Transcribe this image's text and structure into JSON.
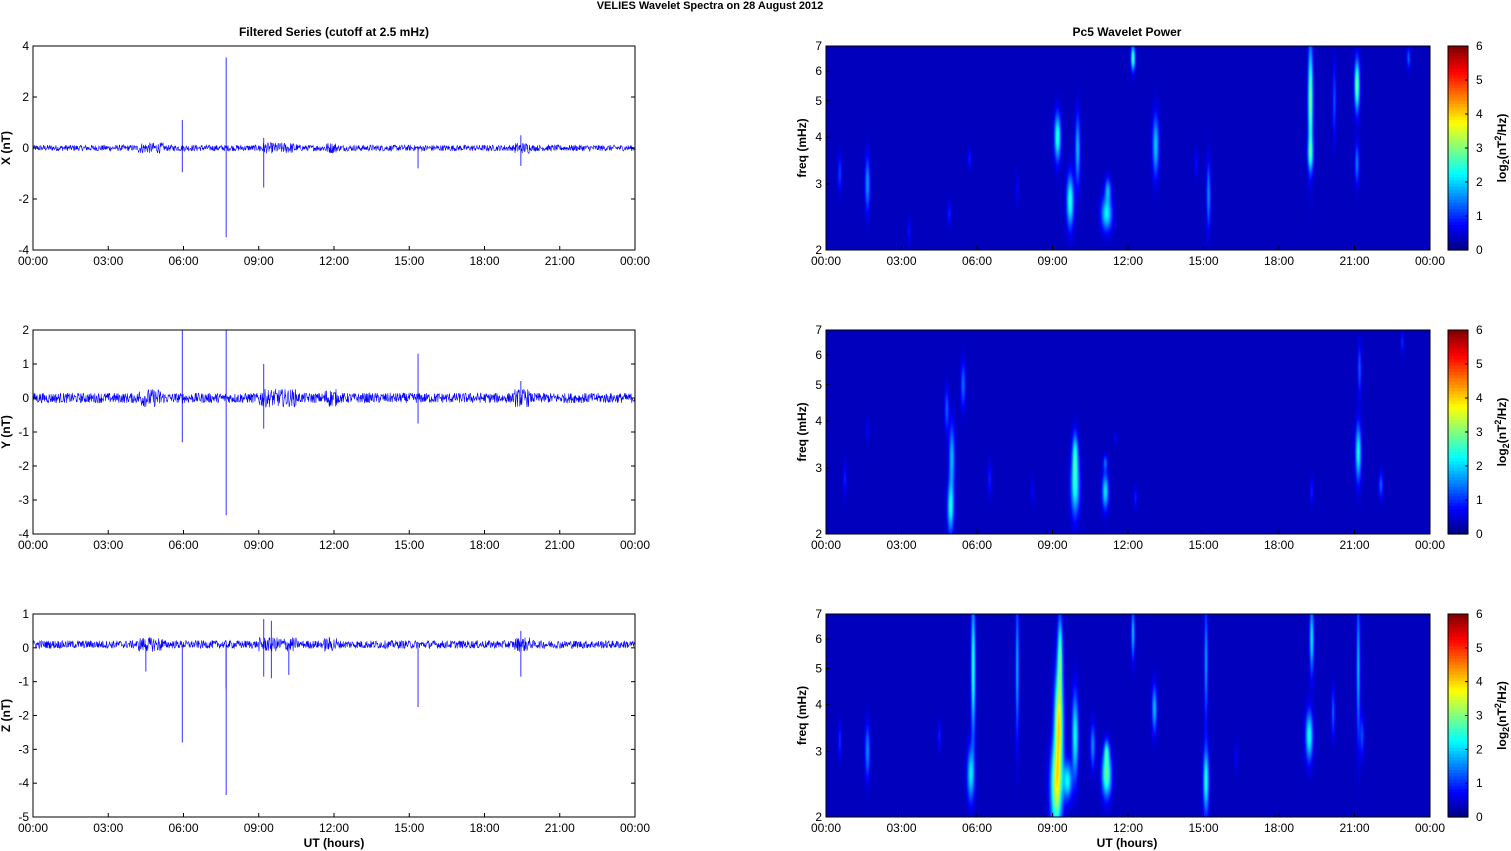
{
  "page_title": "VELIES Wavelet Spectra on 28 August    2012",
  "left_title": "Filtered Series (cutoff at 2.5 mHz)",
  "right_title": "Pc5 Wavelet Power",
  "x_label": "UT (hours)",
  "freq_label": "freq (mHz)",
  "colorbar_label": "log2(nT2/Hz)",
  "colors": {
    "trace": "#0000ff",
    "background": "#00008f"
  },
  "chart_data": [
    {
      "type": "line",
      "title": "Filtered Series (cutoff at 2.5 mHz)",
      "ylabel": "X (nT)",
      "xlabel": "",
      "x_ticks": [
        "00:00",
        "03:00",
        "06:00",
        "09:00",
        "12:00",
        "15:00",
        "18:00",
        "21:00",
        "00:00"
      ],
      "xlim_hours": [
        0,
        24
      ],
      "ylim": [
        -4,
        4
      ],
      "y_ticks": [
        "-4",
        "-2",
        "0",
        "2",
        "4"
      ],
      "baseline": 0.0,
      "noise_amplitude": 0.12,
      "spikes": [
        [
          5.95,
          1.1
        ],
        [
          5.95,
          -0.95
        ],
        [
          7.7,
          3.55
        ],
        [
          7.7,
          -3.5
        ],
        [
          9.2,
          -1.55
        ],
        [
          9.2,
          0.4
        ],
        [
          15.35,
          -0.8
        ],
        [
          19.45,
          -0.7
        ],
        [
          19.45,
          0.5
        ]
      ]
    },
    {
      "type": "line",
      "title": "",
      "ylabel": "Y (nT)",
      "xlabel": "",
      "x_ticks": [
        "00:00",
        "03:00",
        "06:00",
        "09:00",
        "12:00",
        "15:00",
        "18:00",
        "21:00",
        "00:00"
      ],
      "xlim_hours": [
        0,
        24
      ],
      "ylim": [
        -4,
        2
      ],
      "y_ticks": [
        "-4",
        "-3",
        "-2",
        "-1",
        "0",
        "1",
        "2"
      ],
      "baseline": 0.0,
      "noise_amplitude": 0.15,
      "spikes": [
        [
          5.95,
          2.0
        ],
        [
          5.95,
          -1.3
        ],
        [
          7.7,
          2.0
        ],
        [
          7.7,
          -3.45
        ],
        [
          9.2,
          1.0
        ],
        [
          9.2,
          -0.9
        ],
        [
          15.35,
          1.3
        ],
        [
          15.35,
          -0.75
        ],
        [
          19.45,
          0.5
        ]
      ]
    },
    {
      "type": "line",
      "title": "",
      "ylabel": "Z (nT)",
      "xlabel": "UT (hours)",
      "x_ticks": [
        "00:00",
        "03:00",
        "06:00",
        "09:00",
        "12:00",
        "15:00",
        "18:00",
        "21:00",
        "00:00"
      ],
      "xlim_hours": [
        0,
        24
      ],
      "ylim": [
        -5,
        1
      ],
      "y_ticks": [
        "-5",
        "-4",
        "-3",
        "-2",
        "-1",
        "0",
        "1"
      ],
      "baseline": 0.1,
      "noise_amplitude": 0.12,
      "spikes": [
        [
          4.5,
          -0.7
        ],
        [
          5.95,
          -2.8
        ],
        [
          7.7,
          -4.35
        ],
        [
          7.7,
          -1.2
        ],
        [
          9.2,
          0.85
        ],
        [
          9.2,
          -0.85
        ],
        [
          9.5,
          0.8
        ],
        [
          9.5,
          -0.9
        ],
        [
          10.2,
          -0.8
        ],
        [
          15.35,
          -1.75
        ],
        [
          19.45,
          -0.85
        ],
        [
          19.45,
          0.5
        ]
      ]
    },
    {
      "type": "heatmap",
      "title": "Pc5 Wavelet Power",
      "ylabel": "freq (mHz)",
      "xlabel": "",
      "x_ticks": [
        "00:00",
        "03:00",
        "06:00",
        "09:00",
        "12:00",
        "15:00",
        "18:00",
        "21:00",
        "00:00"
      ],
      "xlim_hours": [
        0,
        24
      ],
      "ylim_mhz": [
        2,
        7
      ],
      "y_scale": "log",
      "y_ticks": [
        "2",
        "3",
        "4",
        "5",
        "6",
        "7"
      ],
      "colorbar_ticks": [
        "0",
        "1",
        "2",
        "3",
        "4",
        "5",
        "6"
      ],
      "colorbar_range": [
        0,
        6
      ],
      "blobs": [
        [
          0.55,
          3.2,
          0.06,
          0.25,
          0.8
        ],
        [
          1.65,
          3.0,
          0.07,
          0.35,
          1.4
        ],
        [
          3.3,
          2.25,
          0.05,
          0.12,
          0.5
        ],
        [
          4.9,
          2.5,
          0.06,
          0.12,
          0.6
        ],
        [
          5.7,
          3.5,
          0.05,
          0.15,
          0.6
        ],
        [
          7.6,
          2.9,
          0.05,
          0.2,
          0.4
        ],
        [
          9.2,
          4.0,
          0.09,
          0.4,
          2.3
        ],
        [
          9.7,
          2.7,
          0.1,
          0.3,
          2.3
        ],
        [
          10.0,
          3.7,
          0.07,
          0.55,
          1.6
        ],
        [
          11.15,
          2.5,
          0.15,
          0.18,
          2.0
        ],
        [
          11.2,
          2.9,
          0.08,
          0.15,
          1.4
        ],
        [
          12.2,
          6.5,
          0.06,
          0.35,
          2.5
        ],
        [
          13.1,
          3.8,
          0.09,
          0.5,
          1.7
        ],
        [
          15.2,
          2.8,
          0.06,
          0.4,
          1.3
        ],
        [
          14.7,
          3.4,
          0.05,
          0.2,
          0.5
        ],
        [
          19.25,
          5.0,
          0.07,
          1.2,
          2.8
        ],
        [
          19.25,
          3.6,
          0.08,
          0.25,
          1.6
        ],
        [
          20.2,
          5.0,
          0.05,
          0.8,
          0.9
        ],
        [
          21.1,
          5.5,
          0.07,
          0.6,
          2.8
        ],
        [
          21.1,
          3.4,
          0.06,
          0.3,
          1.2
        ],
        [
          23.15,
          6.5,
          0.05,
          0.3,
          1.0
        ]
      ]
    },
    {
      "type": "heatmap",
      "title": "",
      "ylabel": "freq (mHz)",
      "xlabel": "",
      "x_ticks": [
        "00:00",
        "03:00",
        "06:00",
        "09:00",
        "12:00",
        "15:00",
        "18:00",
        "21:00",
        "00:00"
      ],
      "xlim_hours": [
        0,
        24
      ],
      "ylim_mhz": [
        2,
        7
      ],
      "y_scale": "log",
      "y_ticks": [
        "2",
        "3",
        "4",
        "5",
        "6",
        "7"
      ],
      "colorbar_ticks": [
        "0",
        "1",
        "2",
        "3",
        "4",
        "5",
        "6"
      ],
      "colorbar_range": [
        0,
        6
      ],
      "blobs": [
        [
          0.75,
          2.8,
          0.05,
          0.2,
          0.6
        ],
        [
          1.65,
          3.8,
          0.05,
          0.2,
          0.4
        ],
        [
          4.95,
          2.35,
          0.09,
          0.25,
          2.1
        ],
        [
          5.0,
          3.2,
          0.08,
          0.45,
          1.6
        ],
        [
          4.8,
          4.3,
          0.06,
          0.4,
          1.0
        ],
        [
          5.45,
          5.0,
          0.07,
          0.5,
          1.1
        ],
        [
          6.5,
          2.8,
          0.06,
          0.2,
          0.6
        ],
        [
          8.2,
          2.6,
          0.05,
          0.15,
          0.4
        ],
        [
          9.9,
          2.7,
          0.12,
          0.35,
          2.2
        ],
        [
          9.9,
          3.3,
          0.08,
          0.3,
          1.6
        ],
        [
          11.1,
          2.6,
          0.09,
          0.2,
          1.9
        ],
        [
          11.1,
          3.1,
          0.06,
          0.1,
          1.0
        ],
        [
          12.3,
          2.5,
          0.05,
          0.12,
          0.6
        ],
        [
          19.3,
          2.6,
          0.05,
          0.15,
          0.6
        ],
        [
          21.15,
          3.3,
          0.08,
          0.4,
          2.1
        ],
        [
          22.05,
          2.7,
          0.06,
          0.15,
          1.0
        ],
        [
          21.2,
          5.5,
          0.05,
          0.6,
          1.0
        ],
        [
          22.9,
          6.5,
          0.04,
          0.3,
          0.7
        ],
        [
          11.5,
          3.6,
          0.04,
          0.1,
          0.4
        ]
      ]
    },
    {
      "type": "heatmap",
      "title": "",
      "ylabel": "freq (mHz)",
      "xlabel": "UT (hours)",
      "x_ticks": [
        "00:00",
        "03:00",
        "06:00",
        "09:00",
        "12:00",
        "15:00",
        "18:00",
        "21:00",
        "00:00"
      ],
      "xlim_hours": [
        0,
        24
      ],
      "ylim_mhz": [
        2,
        7
      ],
      "y_scale": "log",
      "y_ticks": [
        "2",
        "3",
        "4",
        "5",
        "6",
        "7"
      ],
      "colorbar_ticks": [
        "0",
        "1",
        "2",
        "3",
        "4",
        "5",
        "6"
      ],
      "colorbar_range": [
        0,
        6
      ],
      "blobs": [
        [
          0.55,
          3.2,
          0.05,
          0.25,
          0.7
        ],
        [
          1.65,
          3.0,
          0.07,
          0.35,
          1.3
        ],
        [
          4.5,
          3.3,
          0.05,
          0.2,
          0.6
        ],
        [
          5.75,
          2.6,
          0.1,
          0.3,
          1.9
        ],
        [
          5.85,
          5.0,
          0.06,
          1.5,
          2.3
        ],
        [
          7.6,
          5.0,
          0.05,
          1.5,
          1.5
        ],
        [
          9.15,
          2.4,
          0.16,
          0.45,
          3.2
        ],
        [
          9.25,
          3.6,
          0.12,
          0.8,
          3.6
        ],
        [
          9.3,
          5.5,
          0.07,
          0.9,
          2.2
        ],
        [
          9.9,
          3.3,
          0.09,
          0.6,
          2.1
        ],
        [
          9.6,
          2.5,
          0.12,
          0.2,
          2.0
        ],
        [
          10.6,
          3.1,
          0.07,
          0.3,
          1.3
        ],
        [
          11.15,
          2.6,
          0.13,
          0.25,
          2.7
        ],
        [
          11.15,
          3.0,
          0.07,
          0.15,
          1.5
        ],
        [
          12.2,
          6.2,
          0.05,
          0.7,
          1.6
        ],
        [
          13.05,
          3.9,
          0.07,
          0.4,
          1.6
        ],
        [
          15.1,
          2.5,
          0.08,
          0.35,
          2.2
        ],
        [
          15.1,
          5.2,
          0.05,
          1.3,
          1.4
        ],
        [
          19.2,
          3.3,
          0.1,
          0.35,
          2.2
        ],
        [
          19.3,
          6.0,
          0.06,
          0.9,
          1.9
        ],
        [
          20.15,
          3.8,
          0.05,
          0.4,
          1.0
        ],
        [
          21.15,
          5.0,
          0.05,
          1.5,
          1.6
        ],
        [
          21.3,
          3.3,
          0.06,
          0.3,
          0.9
        ],
        [
          16.3,
          2.9,
          0.05,
          0.2,
          0.4
        ]
      ]
    }
  ]
}
